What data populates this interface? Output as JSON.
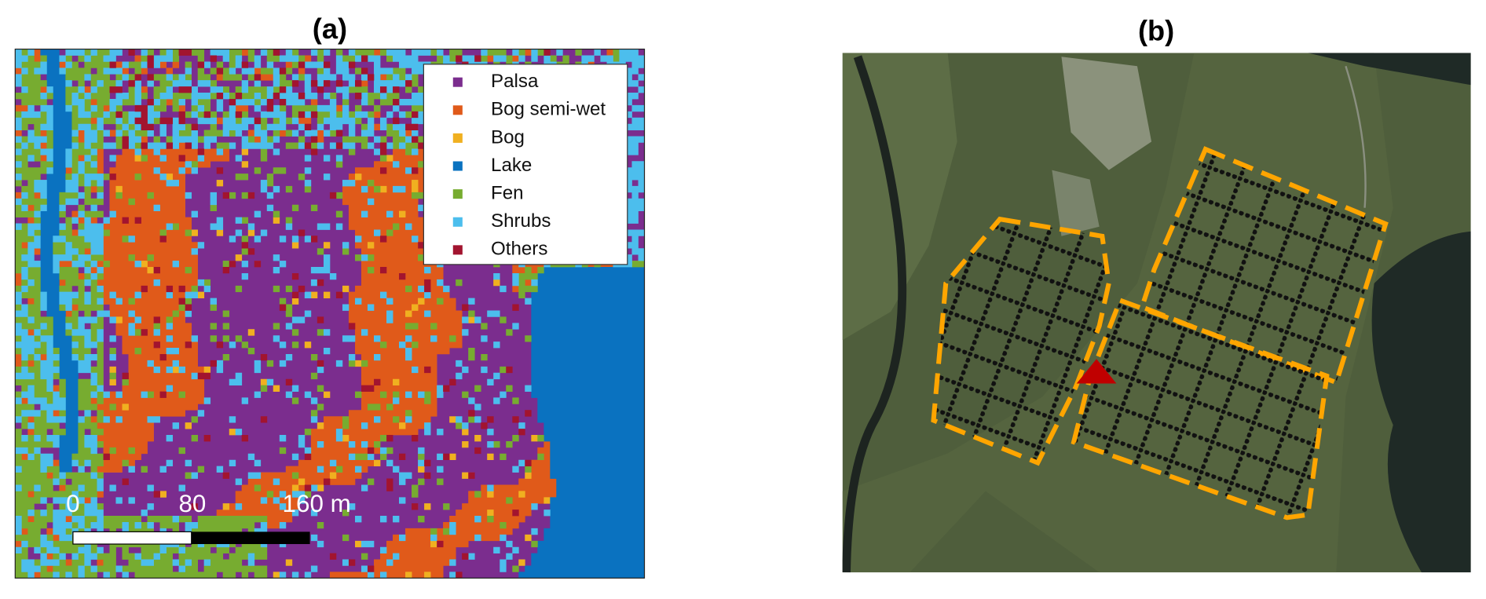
{
  "panels": [
    {
      "title": "(a)",
      "legend": [
        {
          "name": "Palsa",
          "color": "#7b2d8e"
        },
        {
          "name": "Bog semi-wet",
          "color": "#e05a1a"
        },
        {
          "name": "Bog",
          "color": "#f0b020"
        },
        {
          "name": "Lake",
          "color": "#0a72c0"
        },
        {
          "name": "Fen",
          "color": "#77ac30"
        },
        {
          "name": "Shrubs",
          "color": "#4cbeed"
        },
        {
          "name": "Others",
          "color": "#a2142f"
        }
      ],
      "scale_bar": {
        "labels": [
          "0",
          "80",
          "160 m"
        ]
      }
    },
    {
      "title": "(b)"
    }
  ]
}
